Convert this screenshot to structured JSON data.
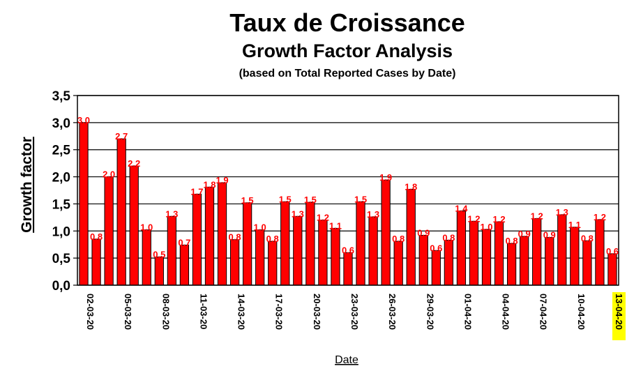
{
  "chart_data": {
    "type": "bar",
    "title": "Taux de Croissance",
    "subtitle": "Growth Factor Analysis",
    "subtitle2": "(based on Total Reported Cases by Date)",
    "xlabel": "Date",
    "ylabel": "Growth factor",
    "ylim": [
      0,
      3.5
    ],
    "yticks": [
      "0,0",
      "0,5",
      "1,0",
      "1,5",
      "2,0",
      "2,5",
      "3,0",
      "3,5"
    ],
    "grid": true,
    "bar_color": "#ff0000",
    "label_color": "#ff0000",
    "highlight_color": "#ffff00",
    "highlight_label": "13-04-20",
    "x_tick_labels": [
      "02-03-20",
      "05-03-20",
      "08-03-20",
      "11-03-20",
      "14-03-20",
      "17-03-20",
      "20-03-20",
      "23-03-20",
      "26-03-20",
      "29-03-20",
      "01-04-20",
      "04-04-20",
      "07-04-20",
      "10-04-20",
      "13-04-20"
    ],
    "values": [
      3.0,
      0.85,
      2.0,
      2.7,
      2.2,
      1.02,
      0.52,
      1.27,
      0.74,
      1.68,
      1.81,
      1.89,
      0.84,
      1.52,
      1.02,
      0.81,
      1.54,
      1.27,
      1.53,
      1.2,
      1.05,
      0.6,
      1.54,
      1.26,
      1.94,
      0.81,
      1.77,
      0.92,
      0.64,
      0.83,
      1.37,
      1.18,
      1.03,
      1.17,
      0.77,
      0.9,
      1.23,
      0.88,
      1.3,
      1.07,
      0.82,
      1.21,
      0.58
    ],
    "data_labels": [
      "3,0",
      "0,8",
      "2,0",
      "2,7",
      "2,2",
      "1,0",
      "0,5",
      "1,3",
      "0,7",
      "1,7",
      "1,8",
      "1,9",
      "0,8",
      "1,5",
      "1,0",
      "0,8",
      "1,5",
      "1,3",
      "1,5",
      "1,2",
      "1,1",
      "0,6",
      "1,5",
      "1,3",
      "1,9",
      "0,8",
      "1,8",
      "0,9",
      "0,6",
      "0,8",
      "1,4",
      "1,2",
      "1,0",
      "1,2",
      "0,8",
      "0,9",
      "1,2",
      "0,9",
      "1,3",
      "1,1",
      "0,8",
      "1,2",
      "0,6"
    ]
  }
}
